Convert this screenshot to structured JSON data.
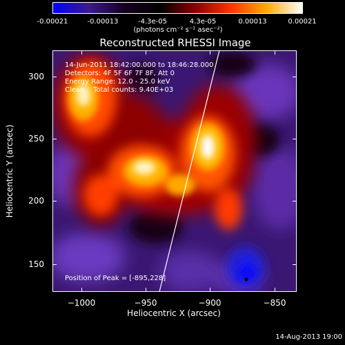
{
  "colorbar": {
    "tick_labels": [
      "-0.00021",
      "-0.00013",
      "-4.3e-05",
      "4.3e-05",
      "0.00013",
      "0.00021"
    ],
    "units": "(photons cm⁻² s⁻¹ asec⁻²)",
    "colors": [
      "#0000ff",
      "#3b1a8f",
      "#150020",
      "#000000",
      "#8a0000",
      "#ff3300",
      "#ffaa00",
      "#ffffff"
    ]
  },
  "plot": {
    "title": "Reconstructed RHESSI Image",
    "info": {
      "time_range": "14-Jun-2011 18:42:00.000 to 18:46:28.000",
      "detectors": "Detectors: 4F 5F 6F 7F 8F, Att 0",
      "energy_range": "Energy Range: 12.0 - 25.0 keV",
      "clean": "Clean    Total counts: 9.40E+03"
    },
    "peak_position": "Position of Peak = [-895,228]",
    "x_axis": {
      "label": "Heliocentric X (arcsec)",
      "ticks": [
        "−1000",
        "−950",
        "−900",
        "−850"
      ],
      "range": [
        -1023,
        -833
      ]
    },
    "y_axis": {
      "label": "Heliocentric Y (arcsec)",
      "ticks": [
        "150",
        "200",
        "250",
        "300"
      ],
      "range": [
        126,
        321
      ]
    }
  },
  "footer": {
    "timestamp": "14-Aug-2013 19:00"
  }
}
